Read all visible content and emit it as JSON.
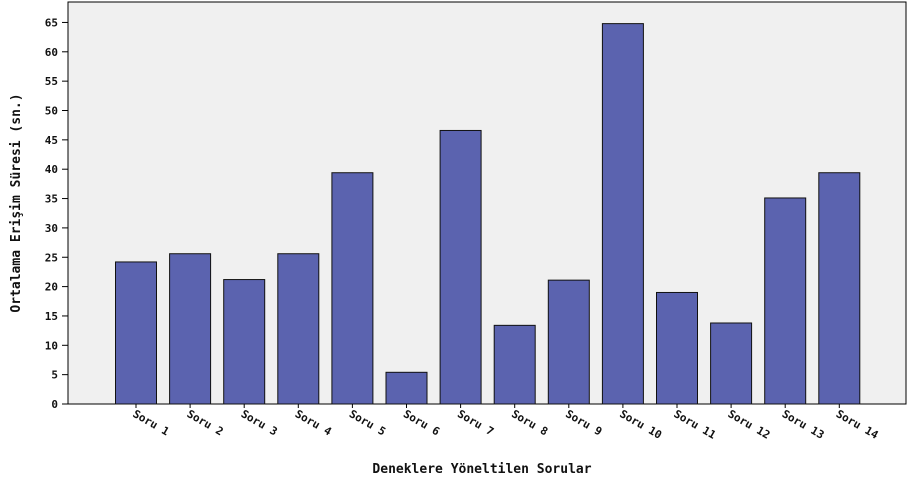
{
  "chart_data": {
    "type": "bar",
    "categories": [
      "Soru 1",
      "Soru 2",
      "Soru 3",
      "Soru 4",
      "Soru 5",
      "Soru 6",
      "Soru 7",
      "Soru 8",
      "Soru 9",
      "Soru 10",
      "Soru 11",
      "Soru 12",
      "Soru 13",
      "Soru 14"
    ],
    "values": [
      24.2,
      25.6,
      21.2,
      25.6,
      39.4,
      5.4,
      46.6,
      13.4,
      21.1,
      64.8,
      19.0,
      13.8,
      35.1,
      39.4
    ],
    "xlabel": "Deneklere Yöneltilen Sorular",
    "ylabel": "Ortalama Erişim Süresi (sn.)",
    "ylim": [
      0,
      68
    ],
    "yticks": [
      0,
      5,
      10,
      15,
      20,
      25,
      30,
      35,
      40,
      45,
      50,
      55,
      60,
      65
    ],
    "grid": false,
    "legend": "none",
    "colors": {
      "bar_fill": "#5b63af",
      "bar_stroke": "#111111",
      "plot_background": "#f0f0f0",
      "axis": "#000000"
    }
  }
}
